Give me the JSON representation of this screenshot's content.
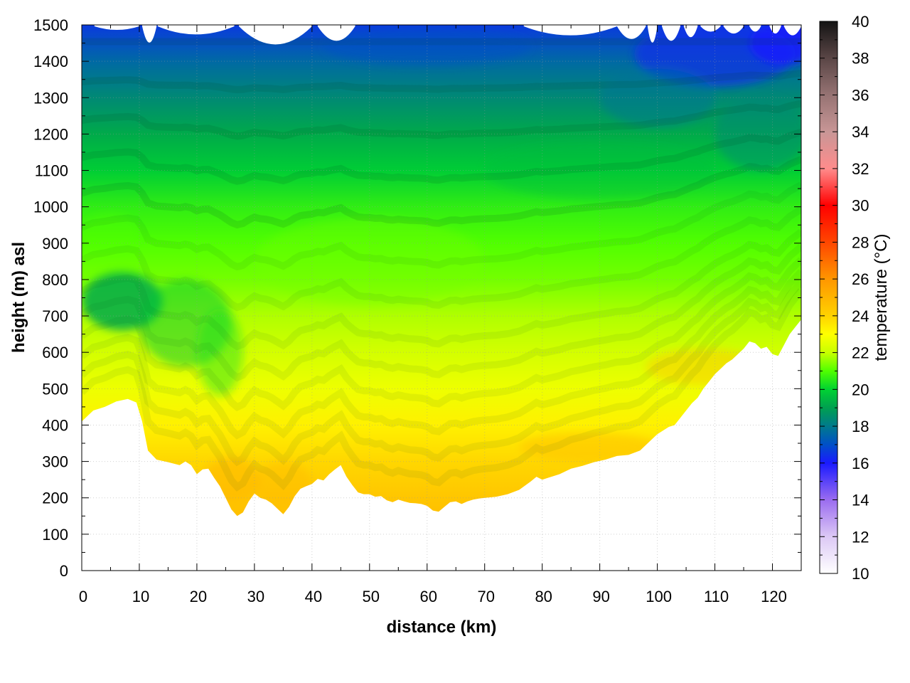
{
  "chart_data": {
    "type": "heatmap",
    "title": "",
    "xlabel": "distance (km)",
    "ylabel": "height (m) asl",
    "xlim": [
      0,
      125
    ],
    "ylim": [
      0,
      1500
    ],
    "x_ticks": [
      0,
      10,
      20,
      30,
      40,
      50,
      60,
      70,
      80,
      90,
      100,
      110,
      120
    ],
    "y_ticks": [
      0,
      100,
      200,
      300,
      400,
      500,
      600,
      700,
      800,
      900,
      1000,
      1100,
      1200,
      1300,
      1400,
      1500
    ],
    "grid": true,
    "colorbar": {
      "label": "temperature (°C)",
      "range": [
        10,
        40
      ],
      "ticks": [
        10,
        12,
        14,
        16,
        18,
        20,
        22,
        24,
        26,
        28,
        30,
        32,
        34,
        36,
        38,
        40
      ],
      "colors": [
        {
          "v": 10,
          "c": "#ffffff"
        },
        {
          "v": 12,
          "c": "#dcc8f5"
        },
        {
          "v": 14,
          "c": "#9a6cf0"
        },
        {
          "v": 16,
          "c": "#1a1aff"
        },
        {
          "v": 17,
          "c": "#0050c8"
        },
        {
          "v": 18,
          "c": "#007a8c"
        },
        {
          "v": 19,
          "c": "#00a050"
        },
        {
          "v": 20,
          "c": "#00d232"
        },
        {
          "v": 21,
          "c": "#50ff00"
        },
        {
          "v": 22,
          "c": "#c8ff00"
        },
        {
          "v": 23,
          "c": "#ffff00"
        },
        {
          "v": 24,
          "c": "#ffd200"
        },
        {
          "v": 26,
          "c": "#ff9600"
        },
        {
          "v": 28,
          "c": "#ff4600"
        },
        {
          "v": 30,
          "c": "#ff0000"
        },
        {
          "v": 32,
          "c": "#ff8c8c"
        },
        {
          "v": 34,
          "c": "#c89696"
        },
        {
          "v": 36,
          "c": "#967373"
        },
        {
          "v": 38,
          "c": "#5a4646"
        },
        {
          "v": 40,
          "c": "#141414"
        }
      ]
    },
    "terrain_profile": {
      "x": [
        0,
        2,
        4,
        6,
        8,
        9.5,
        10.5,
        11.5,
        13,
        15,
        17,
        18,
        19,
        20,
        21,
        22,
        23,
        24,
        25,
        26,
        27,
        28,
        29,
        30,
        31,
        32,
        33,
        34,
        35,
        36,
        37,
        38,
        39,
        40,
        41,
        42,
        43,
        44,
        45,
        46,
        47,
        48,
        49,
        50,
        51,
        52,
        53,
        54,
        55,
        56,
        57,
        58,
        59,
        60,
        61,
        62,
        63,
        64,
        65,
        66,
        67,
        68,
        69,
        70,
        72,
        74,
        76,
        78,
        79,
        80,
        81,
        83,
        85,
        87,
        89,
        91,
        93,
        95,
        97,
        99,
        100,
        101,
        102,
        103,
        104,
        105,
        106,
        107,
        108,
        109,
        110,
        111,
        112,
        113,
        114,
        115,
        116,
        117,
        118,
        119,
        120,
        121,
        122,
        123,
        124,
        125
      ],
      "elev_m": [
        410,
        440,
        450,
        465,
        472,
        462,
        410,
        330,
        305,
        298,
        290,
        300,
        290,
        265,
        278,
        280,
        255,
        232,
        200,
        168,
        150,
        160,
        190,
        212,
        200,
        195,
        185,
        170,
        155,
        175,
        205,
        225,
        232,
        238,
        252,
        248,
        265,
        278,
        290,
        258,
        235,
        215,
        210,
        210,
        203,
        205,
        193,
        188,
        195,
        190,
        186,
        185,
        183,
        178,
        165,
        162,
        175,
        188,
        190,
        183,
        190,
        195,
        198,
        200,
        203,
        210,
        222,
        245,
        258,
        250,
        255,
        265,
        280,
        288,
        298,
        305,
        315,
        318,
        330,
        360,
        375,
        385,
        395,
        400,
        420,
        440,
        460,
        475,
        500,
        520,
        540,
        555,
        570,
        580,
        595,
        610,
        630,
        625,
        610,
        615,
        595,
        590,
        620,
        650,
        670,
        690
      ]
    },
    "field_description": "Vertical cross-section of air temperature: about 24-25 °C (yellow/orange) just above the terrain, decreasing with height to about 21 °C (green) at 600-1000 m, about 19 °C around 1200 m and 16-18 °C (blue) near 1400-1500 m; a cooler pocket of about 19 °C near 5-12 km at 650-800 m."
  }
}
